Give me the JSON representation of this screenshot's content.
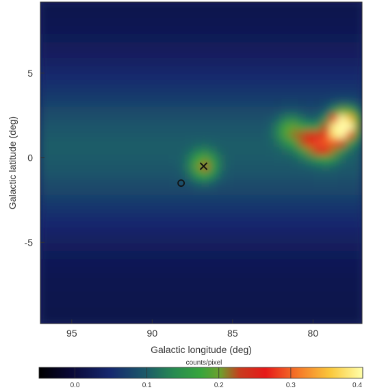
{
  "chart_data": {
    "type": "heatmap",
    "xlabel": "Galactic longitude (deg)",
    "ylabel": "Galactic latitude (deg)",
    "xlim": [
      96.95,
      76.95
    ],
    "ylim": [
      -9.8,
      9.2
    ],
    "xticks": [
      95,
      90,
      85,
      80
    ],
    "yticks": [
      5,
      0,
      -5
    ],
    "xtick_labels": [
      "95",
      "90",
      "85",
      "80"
    ],
    "ytick_labels": [
      "5",
      "0",
      "-5"
    ],
    "colorbar": {
      "title": "counts/pixel",
      "min": -0.05,
      "max": 0.4,
      "ticks": [
        0.0,
        0.1,
        0.2,
        0.3,
        0.4
      ],
      "tick_labels": [
        "0.0",
        "0.1",
        "0.2",
        "0.3",
        "0.4"
      ]
    },
    "background_counts": 0.015,
    "band": {
      "center_latitude_deg": 0.5,
      "peak_counts": 0.085
    },
    "features": [
      {
        "l": 78.0,
        "b": 2.0,
        "counts": 0.4,
        "description": "brightest source"
      },
      {
        "l": 78.6,
        "b": 1.5,
        "counts": 0.25
      },
      {
        "l": 80.2,
        "b": 1.0,
        "counts": 0.22
      },
      {
        "l": 79.2,
        "b": 0.6,
        "counts": 0.2
      },
      {
        "l": 81.4,
        "b": 1.6,
        "counts": 0.18
      },
      {
        "l": 86.8,
        "b": -0.5,
        "counts": 0.2
      }
    ],
    "markers": [
      {
        "shape": "x",
        "l": 86.8,
        "b": -0.5
      },
      {
        "shape": "circle",
        "l": 88.2,
        "b": -1.5
      }
    ]
  }
}
